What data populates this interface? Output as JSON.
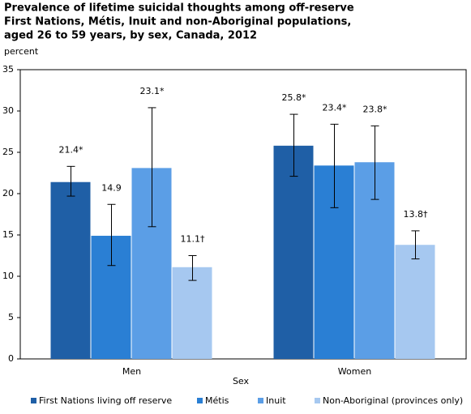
{
  "chart_data": {
    "type": "bar",
    "title": [
      "Prevalence of lifetime suicidal thoughts among off-reserve",
      "First Nations, Métis, Inuit and non-Aboriginal populations,",
      "aged 26 to 59 years, by sex, Canada, 2012"
    ],
    "y_label": "percent",
    "x_label": "Sex",
    "categories": [
      "Men",
      "Women"
    ],
    "series": [
      {
        "name": "First Nations living off reserve",
        "color": "#1f5fa6",
        "values": [
          21.4,
          25.8
        ],
        "value_labels": [
          "21.4*",
          "25.8*"
        ],
        "ci_low": [
          19.7,
          22.1
        ],
        "ci_high": [
          23.3,
          29.6
        ]
      },
      {
        "name": "Métis",
        "color": "#2a7fd4",
        "values": [
          14.9,
          23.4
        ],
        "value_labels": [
          "14.9",
          "23.4*"
        ],
        "ci_low": [
          11.3,
          18.3
        ],
        "ci_high": [
          18.7,
          28.4
        ]
      },
      {
        "name": "Inuit",
        "color": "#5b9ee6",
        "values": [
          23.1,
          23.8
        ],
        "value_labels": [
          "23.1*",
          "23.8*"
        ],
        "ci_low": [
          16.0,
          19.3
        ],
        "ci_high": [
          30.4,
          28.2
        ]
      },
      {
        "name": "Non-Aboriginal (provinces only)",
        "color": "#a6c8f0",
        "values": [
          11.1,
          13.8
        ],
        "value_labels": [
          "11.1†",
          "13.8†"
        ],
        "ci_low": [
          9.5,
          12.1
        ],
        "ci_high": [
          12.5,
          15.5
        ]
      }
    ],
    "ylim": [
      0,
      35
    ],
    "yticks": [
      0,
      5,
      10,
      15,
      20,
      25,
      30,
      35
    ]
  }
}
